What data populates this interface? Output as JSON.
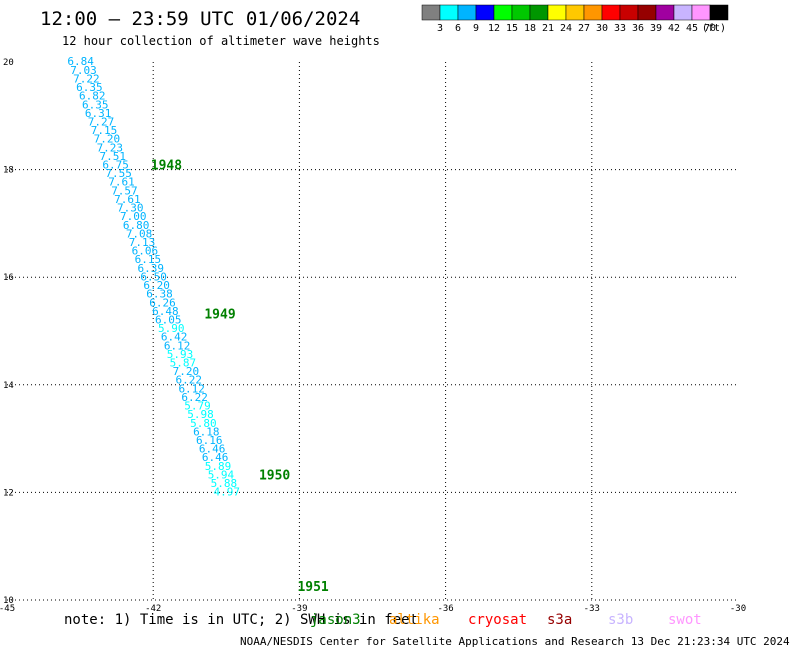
{
  "header": {
    "title": "12:00 – 23:59 UTC 01/06/2024",
    "subtitle": "12 hour collection of altimeter wave heights"
  },
  "colorbar": {
    "unit": "(ft)",
    "colors": [
      "#808080",
      "#00ffff",
      "#00b4ff",
      "#0000ff",
      "#00ff00",
      "#00c800",
      "#009600",
      "#ffff00",
      "#ffc800",
      "#ff9600",
      "#ff0000",
      "#c80000",
      "#960000",
      "#a000a0",
      "#c8b4ff",
      "#ff96ff",
      "#000000"
    ],
    "labels": [
      "3",
      "6",
      "9",
      "12",
      "15",
      "18",
      "21",
      "24",
      "27",
      "30",
      "33",
      "36",
      "39",
      "42",
      "45",
      "70"
    ]
  },
  "map": {
    "lon_range": [
      -45,
      -30
    ],
    "lat_range": [
      10,
      20
    ],
    "x_ticks": [
      "-45",
      "-42",
      "-39",
      "-36",
      "-33",
      "-30"
    ],
    "y_ticks": [
      "10",
      "12",
      "14",
      "16",
      "18",
      "20"
    ],
    "time_labels": [
      {
        "text": "1948",
        "lon": -42.05,
        "lat": 18.0
      },
      {
        "text": "1949",
        "lon": -40.95,
        "lat": 15.23
      },
      {
        "text": "1950",
        "lon": -39.83,
        "lat": 12.24
      },
      {
        "text": "1951",
        "lon": -39.04,
        "lat": 10.17
      }
    ],
    "track_points": [
      {
        "lon": -43.49,
        "lat": 19.94,
        "v": "6.84"
      },
      {
        "lon": -43.43,
        "lat": 19.78,
        "v": "7.03"
      },
      {
        "lon": -43.37,
        "lat": 19.62,
        "v": "7.22"
      },
      {
        "lon": -43.31,
        "lat": 19.46,
        "v": "6.35"
      },
      {
        "lon": -43.25,
        "lat": 19.3,
        "v": "6.82"
      },
      {
        "lon": -43.19,
        "lat": 19.14,
        "v": "6.35"
      },
      {
        "lon": -43.13,
        "lat": 18.98,
        "v": "6.31"
      },
      {
        "lon": -43.07,
        "lat": 18.82,
        "v": "7.27"
      },
      {
        "lon": -43.01,
        "lat": 18.66,
        "v": "7.15"
      },
      {
        "lon": -42.95,
        "lat": 18.5,
        "v": "7.20"
      },
      {
        "lon": -42.89,
        "lat": 18.34,
        "v": "7.23"
      },
      {
        "lon": -42.83,
        "lat": 18.18,
        "v": "7.51"
      },
      {
        "lon": -42.77,
        "lat": 18.02,
        "v": "6.75"
      },
      {
        "lon": -42.71,
        "lat": 17.86,
        "v": "7.55"
      },
      {
        "lon": -42.65,
        "lat": 17.7,
        "v": "7.61"
      },
      {
        "lon": -42.59,
        "lat": 17.54,
        "v": "7.57"
      },
      {
        "lon": -42.53,
        "lat": 17.38,
        "v": "7.61"
      },
      {
        "lon": -42.47,
        "lat": 17.22,
        "v": "7.30"
      },
      {
        "lon": -42.41,
        "lat": 17.06,
        "v": "7.00"
      },
      {
        "lon": -42.35,
        "lat": 16.9,
        "v": "6.80"
      },
      {
        "lon": -42.29,
        "lat": 16.74,
        "v": "7.08"
      },
      {
        "lon": -42.23,
        "lat": 16.58,
        "v": "7.13"
      },
      {
        "lon": -42.17,
        "lat": 16.42,
        "v": "6.06"
      },
      {
        "lon": -42.11,
        "lat": 16.26,
        "v": "6.15"
      },
      {
        "lon": -42.05,
        "lat": 16.1,
        "v": "6.39"
      },
      {
        "lon": -41.99,
        "lat": 15.94,
        "v": "6.50"
      },
      {
        "lon": -41.93,
        "lat": 15.78,
        "v": "6.20"
      },
      {
        "lon": -41.87,
        "lat": 15.62,
        "v": "6.38"
      },
      {
        "lon": -41.81,
        "lat": 15.46,
        "v": "6.26"
      },
      {
        "lon": -41.75,
        "lat": 15.3,
        "v": "6.48"
      },
      {
        "lon": -41.69,
        "lat": 15.14,
        "v": "6.05"
      },
      {
        "lon": -41.63,
        "lat": 14.98,
        "v": "5.90"
      },
      {
        "lon": -41.57,
        "lat": 14.82,
        "v": "6.42"
      },
      {
        "lon": -41.51,
        "lat": 14.66,
        "v": "6.12"
      },
      {
        "lon": -41.45,
        "lat": 14.5,
        "v": "5.93"
      },
      {
        "lon": -41.39,
        "lat": 14.34,
        "v": "5.87"
      },
      {
        "lon": -41.33,
        "lat": 14.18,
        "v": "7.20"
      },
      {
        "lon": -41.27,
        "lat": 14.02,
        "v": "6.22"
      },
      {
        "lon": -41.21,
        "lat": 13.86,
        "v": "6.12"
      },
      {
        "lon": -41.15,
        "lat": 13.7,
        "v": "6.22"
      },
      {
        "lon": -41.09,
        "lat": 13.54,
        "v": "5.79"
      },
      {
        "lon": -41.03,
        "lat": 13.38,
        "v": "5.98"
      },
      {
        "lon": -40.97,
        "lat": 13.22,
        "v": "5.80"
      },
      {
        "lon": -40.91,
        "lat": 13.06,
        "v": "6.18"
      },
      {
        "lon": -40.85,
        "lat": 12.9,
        "v": "6.16"
      },
      {
        "lon": -40.79,
        "lat": 12.74,
        "v": "6.46"
      },
      {
        "lon": -40.73,
        "lat": 12.58,
        "v": "6.46"
      },
      {
        "lon": -40.67,
        "lat": 12.42,
        "v": "5.89"
      },
      {
        "lon": -40.61,
        "lat": 12.26,
        "v": "5.94"
      },
      {
        "lon": -40.55,
        "lat": 12.1,
        "v": "5.88"
      },
      {
        "lon": -40.49,
        "lat": 11.94,
        "v": "4.97"
      }
    ]
  },
  "note": "note:  1) Time is in UTC; 2) SWH is in feet",
  "satellites": [
    {
      "name": "jason3",
      "color": "#008000"
    },
    {
      "name": "altika",
      "color": "#ff9600"
    },
    {
      "name": "cryosat",
      "color": "#ff0000"
    },
    {
      "name": "s3a",
      "color": "#960000"
    },
    {
      "name": "s3b",
      "color": "#c8b4ff"
    },
    {
      "name": "swot",
      "color": "#ff96ff"
    }
  ],
  "credit": "NOAA/NESDIS Center for Satellite Applications and Research    13 Dec 21:23:34 UTC 2024"
}
